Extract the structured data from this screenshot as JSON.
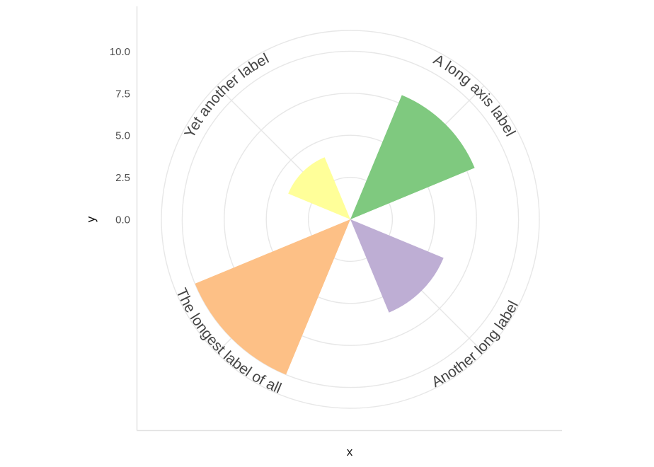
{
  "figure": {
    "background": "#FFFFFF"
  },
  "chart_data": {
    "type": "bar",
    "coordinate_system": "polar",
    "title": "",
    "categories": [
      "A long axis label",
      "Another long label",
      "The longest label of all",
      "Yet another label"
    ],
    "values": [
      8,
      6,
      10,
      4
    ],
    "colors": [
      "#7FC97F",
      "#BEAED4",
      "#FDC086",
      "#FFFF99"
    ],
    "category_angles_deg": [
      45,
      135,
      225,
      315
    ],
    "bar_angular_width_deg": 45,
    "xlabel": "x",
    "ylabel": "y",
    "r_axis": {
      "ticks": [
        0,
        2.5,
        5,
        7.5,
        10
      ],
      "tick_labels": [
        "0.0",
        "2.5",
        "5.0",
        "7.5",
        "10.0"
      ],
      "range": [
        0,
        10
      ]
    },
    "grid": true,
    "legend": "none",
    "grid_color": "#E7E7E7",
    "axis_line_color": "#E2E2E2",
    "tick_label_color": "#4D4D4D",
    "category_label_color": "#454545",
    "axis_title_color": "#111111"
  }
}
